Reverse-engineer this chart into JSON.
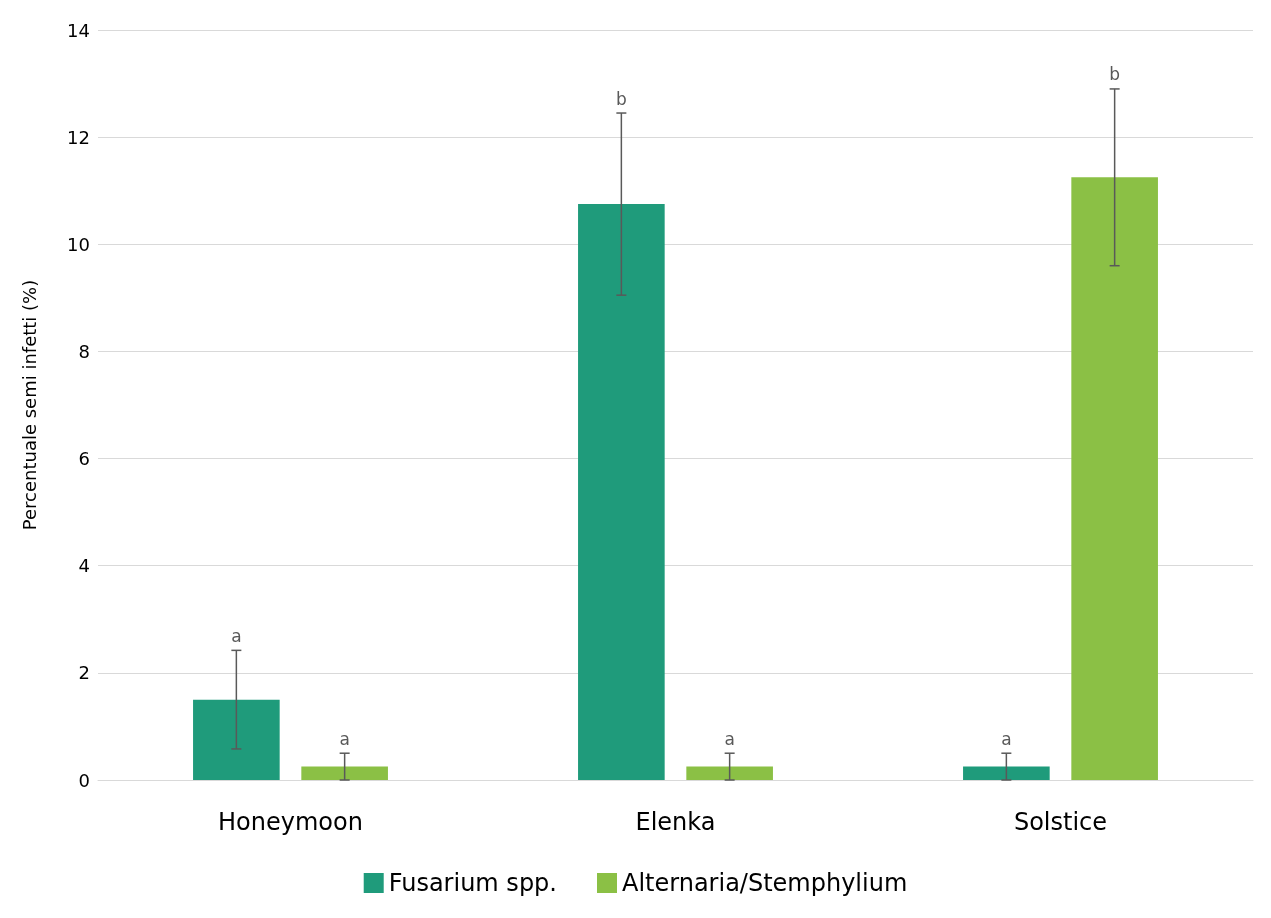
{
  "chart_data": {
    "type": "bar",
    "ylabel": "Percentuale semi infetti (%)",
    "categories": [
      "Honeymoon",
      "Elenka",
      "Solstice"
    ],
    "series": [
      {
        "name": "Fusarium spp.",
        "color": "#1f9b7b",
        "values": [
          1.5,
          10.75,
          0.25
        ],
        "errors": [
          0.92,
          1.7,
          0.25
        ]
      },
      {
        "name": "Alternaria/Stemphylium",
        "color": "#8bc045",
        "values": [
          0.25,
          0.25,
          11.25
        ],
        "errors": [
          0.25,
          0.25,
          1.65
        ]
      }
    ],
    "ylim": [
      0,
      14
    ],
    "yticks": [
      0,
      2,
      4,
      6,
      8,
      10,
      12,
      14
    ],
    "grid": "y",
    "legend": "bottom",
    "annotations": [
      "a",
      "a",
      "b",
      "a",
      "a",
      "b"
    ]
  }
}
